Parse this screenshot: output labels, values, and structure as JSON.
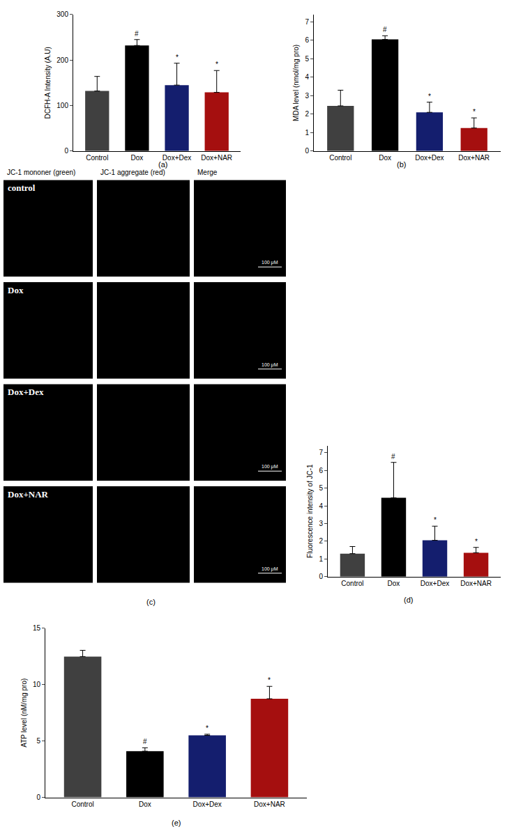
{
  "chart_data": [
    {
      "type": "bar",
      "panel": "(a)",
      "y_label": "DCFH-A Intensity (A.U)",
      "categories": [
        "Control",
        "Dox",
        "Dox+Dex",
        "Dox+NAR"
      ],
      "values": [
        132,
        232,
        145,
        129
      ],
      "error": [
        32,
        13,
        48,
        48
      ],
      "colors": [
        "#404040",
        "#000000",
        "#141e6e",
        "#a50f0f"
      ],
      "ylim": [
        0,
        300
      ],
      "yticks": [
        0,
        100,
        200,
        300
      ],
      "grid": false,
      "annotations": [
        {
          "category": "Dox",
          "text": "#"
        },
        {
          "category": "Dox+Dex",
          "text": "*"
        },
        {
          "category": "Dox+NAR",
          "text": "*"
        }
      ]
    },
    {
      "type": "bar",
      "panel": "(b)",
      "y_label": "MDA level (nmol/mg pro)",
      "categories": [
        "Control",
        "Dox",
        "Dox+Dex",
        "Dox+NAR"
      ],
      "values": [
        2.45,
        6.05,
        2.1,
        1.25
      ],
      "error": [
        0.85,
        0.2,
        0.55,
        0.55
      ],
      "colors": [
        "#404040",
        "#000000",
        "#141e6e",
        "#a50f0f"
      ],
      "ylim": [
        0,
        7.4
      ],
      "yticks": [
        0,
        1,
        2,
        3,
        4,
        5,
        6,
        7
      ],
      "grid": false,
      "annotations": [
        {
          "category": "Dox",
          "text": "#"
        },
        {
          "category": "Dox+Dex",
          "text": "*"
        },
        {
          "category": "Dox+NAR",
          "text": "*"
        }
      ]
    },
    {
      "type": "bar",
      "panel": "(d)",
      "y_label": "Fluorescence intensity of JC-1",
      "categories": [
        "Control",
        "Dox",
        "Dox+Dex",
        "Dox+NAR"
      ],
      "values": [
        1.3,
        4.45,
        2.05,
        1.35
      ],
      "error": [
        0.4,
        2.0,
        0.8,
        0.3
      ],
      "colors": [
        "#404040",
        "#000000",
        "#141e6e",
        "#a50f0f"
      ],
      "ylim": [
        0,
        7.4
      ],
      "yticks": [
        0,
        1,
        2,
        3,
        4,
        5,
        6,
        7
      ],
      "grid": false,
      "annotations": [
        {
          "category": "Dox",
          "text": "#"
        },
        {
          "category": "Dox+Dex",
          "text": "*"
        },
        {
          "category": "Dox+NAR",
          "text": "*"
        }
      ]
    },
    {
      "type": "bar",
      "panel": "(e)",
      "y_label": "ATP level (nM/mg pro)",
      "categories": [
        "Control",
        "Dox",
        "Dox+Dex",
        "Dox+NAR"
      ],
      "values": [
        12.5,
        4.1,
        5.5,
        8.75
      ],
      "error": [
        0.55,
        0.3,
        0.1,
        1.1
      ],
      "colors": [
        "#404040",
        "#000000",
        "#141e6e",
        "#a50f0f"
      ],
      "ylim": [
        0,
        15
      ],
      "yticks": [
        0,
        5,
        10,
        15
      ],
      "grid": false,
      "annotations": [
        {
          "category": "Dox",
          "text": "#"
        },
        {
          "category": "Dox+Dex",
          "text": "*"
        },
        {
          "category": "Dox+NAR",
          "text": "*"
        }
      ]
    }
  ],
  "image_panel": {
    "panel": "(c)",
    "columns": [
      "JC-1 mononer (green)",
      "JC-1 aggregate (red)",
      "Merge"
    ],
    "rows": [
      "control",
      "Dox",
      "Dox+Dex",
      "Dox+NAR"
    ],
    "scale_bar": "100 μM"
  }
}
